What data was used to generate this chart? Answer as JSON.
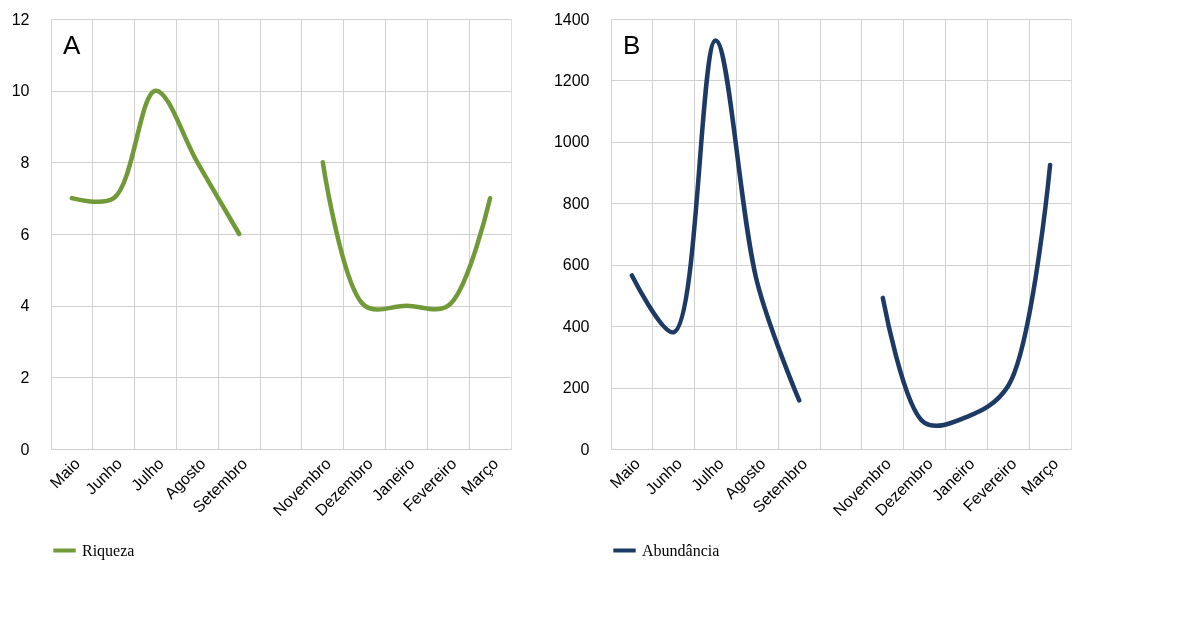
{
  "chart_data": [
    {
      "type": "line",
      "annotations": [
        "A"
      ],
      "categories": [
        "Maio",
        "Junho",
        "Julho",
        "Agosto",
        "Setembro",
        null,
        "Novembro",
        "Dezembro",
        "Janeiro",
        "Fevereiro",
        "Março"
      ],
      "series": [
        {
          "name": "Riqueza",
          "color": "#6f9a37",
          "values": [
            7,
            7,
            10,
            8,
            6,
            null,
            8,
            4,
            4,
            4,
            7
          ]
        }
      ],
      "ylim": [
        0,
        12
      ],
      "yticks": [
        0,
        2,
        4,
        6,
        8,
        10,
        12
      ],
      "grid": true,
      "legend": "bottom",
      "line_style": "solid"
    },
    {
      "type": "line",
      "annotations": [
        "B"
      ],
      "categories": [
        "Maio",
        "Junho",
        "Julho",
        "Agosto",
        "Setembro",
        null,
        "Novembro",
        "Dezembro",
        "Janeiro",
        "Fevereiro",
        "Março"
      ],
      "series": [
        {
          "name": "Abundância",
          "color": "#1c3a63",
          "values": [
            565,
            380,
            1330,
            540,
            158,
            null,
            492,
            85,
            104,
            206,
            925
          ]
        }
      ],
      "ylim": [
        0,
        1400
      ],
      "yticks": [
        0,
        200,
        400,
        600,
        800,
        1000,
        1200,
        1400
      ],
      "grid": true,
      "legend": "bottom",
      "line_style": "solid"
    }
  ]
}
